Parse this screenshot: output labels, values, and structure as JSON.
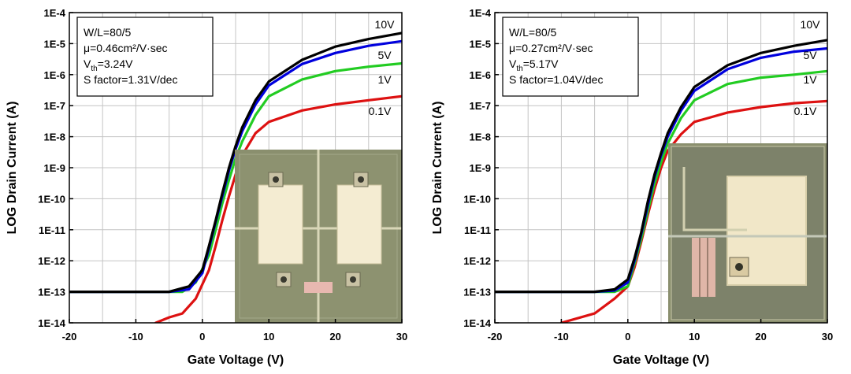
{
  "chart_data": [
    {
      "type": "line",
      "xlabel": "Gate Voltage (V)",
      "ylabel": "LOG Drain Current (A)",
      "xlim": [
        -20,
        30
      ],
      "ylim_log10": [
        -14,
        -4
      ],
      "y_scale": "log",
      "grid": true,
      "x_ticks": [
        "-20",
        "-10",
        "0",
        "10",
        "20",
        "30"
      ],
      "y_ticks": [
        "1E-4",
        "1E-5",
        "1E-6",
        "1E-7",
        "1E-8",
        "1E-9",
        "1E-10",
        "1E-11",
        "1E-12",
        "1E-13",
        "1E-14"
      ],
      "annotation": {
        "wl": "W/L=80/5",
        "mu": "μ=0.46cm²/V·sec",
        "vth_prefix": "V",
        "vth_sub": "th",
        "vth_value": "=3.24V",
        "sfactor": "S factor=1.31V/dec"
      },
      "inset": "optical micrograph of a pair of TFT devices",
      "series": [
        {
          "name": "10V",
          "color": "#000000",
          "x": [
            -20,
            -10,
            -5,
            -2,
            0,
            1,
            2,
            3,
            4,
            5,
            6,
            8,
            10,
            15,
            20,
            25,
            30
          ],
          "y": [
            1e-13,
            1e-13,
            1e-13,
            1.5e-13,
            5e-13,
            3e-12,
            2e-11,
            1.5e-10,
            1e-09,
            5e-09,
            2e-08,
            1.5e-07,
            6e-07,
            3e-06,
            8e-06,
            1.4e-05,
            2.2e-05
          ]
        },
        {
          "name": "5V",
          "color": "#0000dd",
          "x": [
            -20,
            -10,
            -5,
            -2,
            0,
            1,
            2,
            3,
            4,
            5,
            6,
            8,
            10,
            15,
            20,
            25,
            30
          ],
          "y": [
            1e-13,
            1e-13,
            1e-13,
            1.2e-13,
            4e-13,
            2.5e-12,
            1.8e-11,
            1.2e-10,
            8e-10,
            4e-09,
            1.5e-08,
            1.1e-07,
            4.5e-07,
            2.2e-06,
            5e-06,
            8.5e-06,
            1.2e-05
          ]
        },
        {
          "name": "1V",
          "color": "#22cc22",
          "x": [
            -20,
            -10,
            -5,
            -3,
            -1,
            1,
            2,
            3,
            4,
            5,
            6,
            8,
            10,
            15,
            20,
            25,
            30
          ],
          "y": [
            1e-13,
            1e-13,
            1e-13,
            1e-13,
            2e-13,
            1.5e-12,
            1e-11,
            7e-11,
            4e-10,
            2e-09,
            7e-09,
            5e-08,
            2e-07,
            7e-07,
            1.3e-06,
            1.8e-06,
            2.3e-06
          ]
        },
        {
          "name": "0.1V",
          "color": "#dd1111",
          "x": [
            -7,
            -5,
            -3,
            -1,
            1,
            2,
            3,
            4,
            5,
            6,
            8,
            10,
            15,
            20,
            25,
            30
          ],
          "y": [
            1e-14,
            1.5e-14,
            2e-14,
            6e-14,
            5e-13,
            3e-12,
            2e-11,
            1.2e-10,
            6e-10,
            2.5e-09,
            1.3e-08,
            3e-08,
            7e-08,
            1.1e-07,
            1.5e-07,
            2e-07
          ]
        }
      ]
    },
    {
      "type": "line",
      "xlabel": "Gate Voltage (V)",
      "ylabel": "LOG Drain Current (A)",
      "xlim": [
        -20,
        30
      ],
      "ylim_log10": [
        -14,
        -4
      ],
      "y_scale": "log",
      "grid": true,
      "x_ticks": [
        "-20",
        "-10",
        "0",
        "10",
        "20",
        "30"
      ],
      "y_ticks": [
        "1E-4",
        "1E-5",
        "1E-6",
        "1E-7",
        "1E-8",
        "1E-9",
        "1E-10",
        "1E-11",
        "1E-12",
        "1E-13",
        "1E-14"
      ],
      "annotation": {
        "wl": "W/L=80/5",
        "mu": "μ=0.27cm²/V·sec",
        "vth_prefix": "V",
        "vth_sub": "th",
        "vth_value": "=5.17V",
        "sfactor": "S factor=1.04V/dec"
      },
      "inset": "optical micrograph of a single TFT device",
      "series": [
        {
          "name": "10V",
          "color": "#000000",
          "x": [
            -20,
            -10,
            -5,
            -2,
            0,
            1,
            2,
            3,
            4,
            5,
            6,
            8,
            10,
            15,
            20,
            25,
            30
          ],
          "y": [
            1e-13,
            1e-13,
            1e-13,
            1.2e-13,
            2.5e-13,
            1.2e-12,
            8e-12,
            8e-11,
            6e-10,
            3e-09,
            1.3e-08,
            9e-08,
            4e-07,
            2e-06,
            5e-06,
            8.5e-06,
            1.3e-05
          ]
        },
        {
          "name": "5V",
          "color": "#0000dd",
          "x": [
            -20,
            -10,
            -5,
            -2,
            0,
            1,
            2,
            3,
            4,
            5,
            6,
            8,
            10,
            15,
            20,
            25,
            30
          ],
          "y": [
            1e-13,
            1e-13,
            1e-13,
            1.1e-13,
            2e-13,
            1e-12,
            7e-12,
            6e-11,
            5e-10,
            2.5e-09,
            1e-08,
            7e-08,
            3e-07,
            1.5e-06,
            3.5e-06,
            5.5e-06,
            7e-06
          ]
        },
        {
          "name": "1V",
          "color": "#22cc22",
          "x": [
            -20,
            -10,
            -5,
            -2,
            0,
            1,
            2,
            3,
            4,
            5,
            6,
            8,
            10,
            15,
            20,
            25,
            30
          ],
          "y": [
            1e-13,
            1e-13,
            1e-13,
            1e-13,
            1.5e-13,
            8e-13,
            5e-12,
            4e-11,
            3e-10,
            1.5e-09,
            6e-09,
            4e-08,
            1.5e-07,
            5e-07,
            8e-07,
            1e-06,
            1.3e-06
          ]
        },
        {
          "name": "0.1V",
          "color": "#dd1111",
          "x": [
            -10,
            -5,
            -2,
            0,
            1,
            2,
            3,
            4,
            5,
            6,
            8,
            10,
            15,
            20,
            25,
            30
          ],
          "y": [
            1e-14,
            2e-14,
            6e-14,
            1.5e-13,
            6e-13,
            4e-12,
            3e-11,
            2e-10,
            1e-09,
            3.5e-09,
            1.2e-08,
            3e-08,
            6e-08,
            9e-08,
            1.2e-07,
            1.4e-07
          ]
        }
      ]
    }
  ]
}
